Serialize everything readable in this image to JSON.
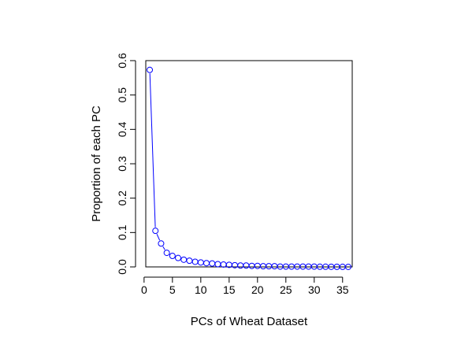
{
  "chart_data": {
    "type": "line",
    "title": "",
    "xlabel": "PCs of Wheat Dataset",
    "ylabel": "Proportion of each PC",
    "xlim": [
      0.3,
      36.7
    ],
    "ylim": [
      0,
      0.6
    ],
    "xticks": [
      0,
      5,
      10,
      15,
      20,
      25,
      30,
      35
    ],
    "yticks": [
      0.0,
      0.1,
      0.2,
      0.3,
      0.4,
      0.5,
      0.6
    ],
    "xtick_labels": [
      "0",
      "5",
      "10",
      "15",
      "20",
      "25",
      "30",
      "35"
    ],
    "ytick_labels": [
      "0.0",
      "0.1",
      "0.2",
      "0.3",
      "0.4",
      "0.5",
      "0.6"
    ],
    "grid": false,
    "series": [
      {
        "color": "#0000ff",
        "marker": "open-circle",
        "x": [
          1,
          2,
          3,
          4,
          5,
          6,
          7,
          8,
          9,
          10,
          11,
          12,
          13,
          14,
          15,
          16,
          17,
          18,
          19,
          20,
          21,
          22,
          23,
          24,
          25,
          26,
          27,
          28,
          29,
          30,
          31,
          32,
          33,
          34,
          35,
          36
        ],
        "y": [
          0.573,
          0.105,
          0.068,
          0.041,
          0.032,
          0.026,
          0.021,
          0.018,
          0.015,
          0.013,
          0.011,
          0.01,
          0.008,
          0.007,
          0.006,
          0.005,
          0.004,
          0.004,
          0.003,
          0.003,
          0.002,
          0.002,
          0.002,
          0.001,
          0.001,
          0.001,
          0.001,
          0.001,
          0.001,
          0.001,
          0.0005,
          0.0005,
          0.0004,
          0.0003,
          0.0002,
          0.0001
        ]
      }
    ]
  }
}
